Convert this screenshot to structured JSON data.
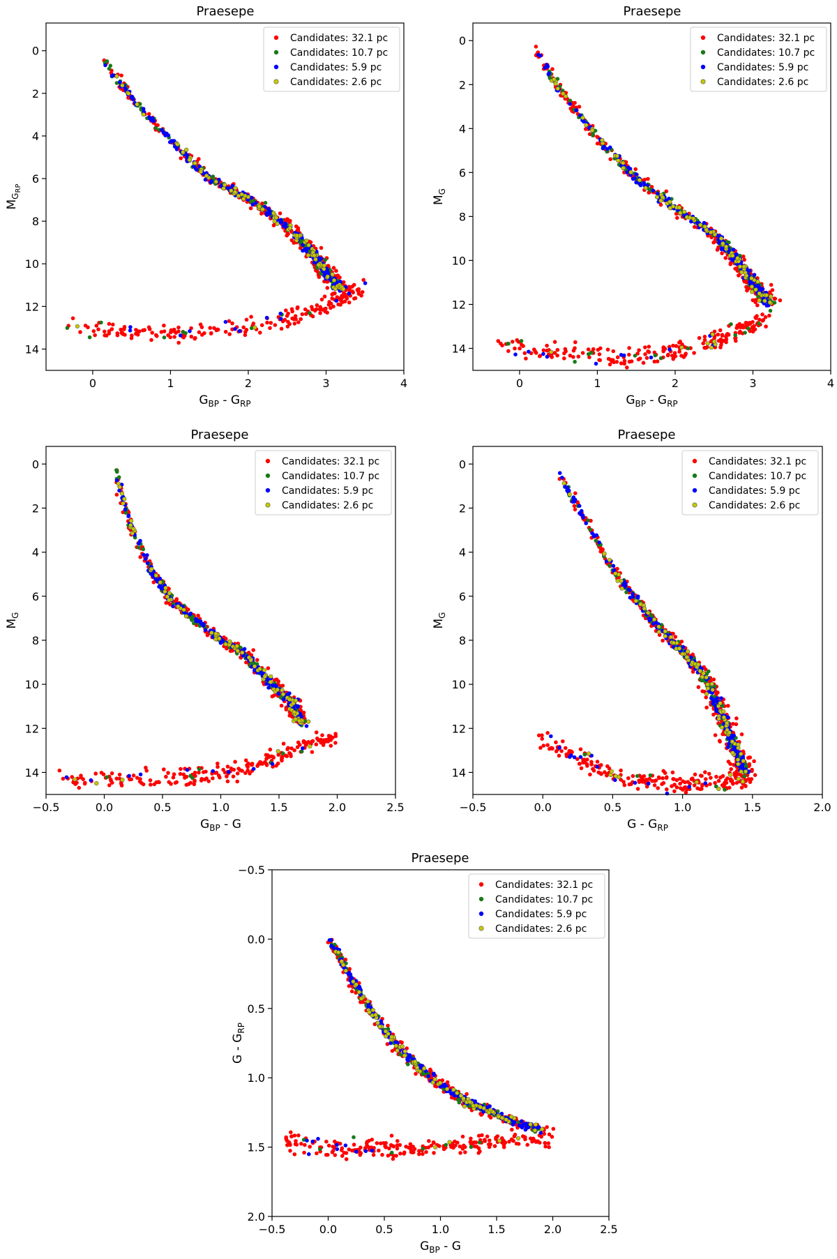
{
  "figure": {
    "background": "#ffffff"
  },
  "colors": {
    "red": "#ff0000",
    "green": "#1a7a1a",
    "blue": "#0000ff",
    "yellow": "#c8c800",
    "dot_edge": "#555555"
  },
  "chart_data": [
    {
      "id": "p1",
      "type": "scatter",
      "title": "Praesepe",
      "xlabel": {
        "main": "G",
        "sub1": "BP",
        "mid": " - G",
        "sub2": "RP"
      },
      "ylabel": {
        "main": "M",
        "sub": "G",
        "sub2": "RP"
      },
      "xlim": [
        -0.6,
        4.0
      ],
      "ylim": [
        15.0,
        -1.3
      ],
      "xticks": [
        "0",
        "1",
        "2",
        "3",
        "4"
      ],
      "xtick_values": [
        0,
        1,
        2,
        3,
        4
      ],
      "yticks": [
        "0",
        "2",
        "4",
        "6",
        "8",
        "10",
        "12",
        "14"
      ],
      "ytick_values": [
        0,
        2,
        4,
        6,
        8,
        10,
        12,
        14
      ],
      "legend_position": "top-right",
      "series_anchors": {
        "main_sequence": [
          [
            0.1,
            0.3
          ],
          [
            0.5,
            2.2
          ],
          [
            1.0,
            4.2
          ],
          [
            1.5,
            6.0
          ],
          [
            2.0,
            6.9
          ],
          [
            2.5,
            8.2
          ],
          [
            2.8,
            9.4
          ],
          [
            3.0,
            10.4
          ],
          [
            3.2,
            11.2
          ]
        ],
        "white_dwarf": [
          [
            -0.3,
            13.0
          ],
          [
            0.5,
            13.2
          ],
          [
            1.2,
            13.3
          ],
          [
            1.8,
            13.0
          ],
          [
            2.4,
            12.6
          ],
          [
            2.8,
            12.2
          ],
          [
            3.2,
            11.6
          ],
          [
            3.5,
            11.2
          ]
        ]
      }
    },
    {
      "id": "p2",
      "type": "scatter",
      "title": "Praesepe",
      "xlabel": {
        "main": "G",
        "sub1": "BP",
        "mid": " - G",
        "sub2": "RP"
      },
      "ylabel": {
        "main": "M",
        "sub": "G"
      },
      "xlim": [
        -0.6,
        4.0
      ],
      "ylim": [
        15.0,
        -0.8
      ],
      "xticks": [
        "0",
        "1",
        "2",
        "3",
        "4"
      ],
      "xtick_values": [
        0,
        1,
        2,
        3,
        4
      ],
      "yticks": [
        "0",
        "2",
        "4",
        "6",
        "8",
        "10",
        "12",
        "14"
      ],
      "ytick_values": [
        0,
        2,
        4,
        6,
        8,
        10,
        12,
        14
      ],
      "legend_position": "top-right",
      "series_anchors": {
        "main_sequence": [
          [
            0.2,
            0.3
          ],
          [
            0.5,
            2.2
          ],
          [
            1.0,
            4.4
          ],
          [
            1.5,
            6.3
          ],
          [
            2.0,
            7.6
          ],
          [
            2.5,
            8.8
          ],
          [
            2.8,
            10.0
          ],
          [
            3.0,
            11.0
          ],
          [
            3.2,
            12.0
          ]
        ],
        "white_dwarf": [
          [
            -0.3,
            13.8
          ],
          [
            0.5,
            14.2
          ],
          [
            1.2,
            14.4
          ],
          [
            1.8,
            14.3
          ],
          [
            2.4,
            13.8
          ],
          [
            2.8,
            13.2
          ],
          [
            3.2,
            12.6
          ]
        ]
      }
    },
    {
      "id": "p3",
      "type": "scatter",
      "title": "Praesepe",
      "xlabel": {
        "main": "G",
        "sub1": "BP",
        "mid": " - G",
        "sub2": ""
      },
      "ylabel": {
        "main": "M",
        "sub": "G"
      },
      "xlim": [
        -0.5,
        2.5
      ],
      "ylim": [
        15.0,
        -0.8
      ],
      "xticks": [
        "−0.5",
        "0.0",
        "0.5",
        "1.0",
        "1.5",
        "2.0",
        "2.5"
      ],
      "xtick_values": [
        -0.5,
        0.0,
        0.5,
        1.0,
        1.5,
        2.0,
        2.5
      ],
      "yticks": [
        "0",
        "2",
        "4",
        "6",
        "8",
        "10",
        "12",
        "14"
      ],
      "ytick_values": [
        0,
        2,
        4,
        6,
        8,
        10,
        12,
        14
      ],
      "legend_position": "top-right",
      "series_anchors": {
        "main_sequence": [
          [
            0.1,
            0.3
          ],
          [
            0.2,
            2.5
          ],
          [
            0.4,
            4.8
          ],
          [
            0.6,
            6.3
          ],
          [
            0.9,
            7.6
          ],
          [
            1.2,
            8.6
          ],
          [
            1.4,
            9.8
          ],
          [
            1.6,
            10.8
          ],
          [
            1.7,
            11.8
          ]
        ],
        "white_dwarf": [
          [
            -0.4,
            14.3
          ],
          [
            0.2,
            14.3
          ],
          [
            0.7,
            14.2
          ],
          [
            1.1,
            14.0
          ],
          [
            1.4,
            13.5
          ],
          [
            1.7,
            12.9
          ],
          [
            2.0,
            12.4
          ]
        ]
      }
    },
    {
      "id": "p4",
      "type": "scatter",
      "title": "Praesepe",
      "xlabel": {
        "main": "G - G",
        "sub1": "",
        "mid": "",
        "sub2": "RP"
      },
      "ylabel": {
        "main": "M",
        "sub": "G"
      },
      "xlim": [
        -0.5,
        2.0
      ],
      "ylim": [
        15.0,
        -0.8
      ],
      "xticks": [
        "−0.5",
        "0.0",
        "0.5",
        "1.0",
        "1.5",
        "2.0"
      ],
      "xtick_values": [
        -0.5,
        0.0,
        0.5,
        1.0,
        1.5,
        2.0
      ],
      "yticks": [
        "0",
        "2",
        "4",
        "6",
        "8",
        "10",
        "12",
        "14"
      ],
      "ytick_values": [
        0,
        2,
        4,
        6,
        8,
        10,
        12,
        14
      ],
      "legend_position": "top-right",
      "series_anchors": {
        "main_sequence": [
          [
            0.1,
            0.3
          ],
          [
            0.3,
            2.5
          ],
          [
            0.5,
            4.8
          ],
          [
            0.75,
            6.8
          ],
          [
            0.95,
            8.2
          ],
          [
            1.15,
            9.5
          ],
          [
            1.25,
            11.0
          ],
          [
            1.35,
            12.5
          ],
          [
            1.45,
            14.0
          ]
        ],
        "white_dwarf": [
          [
            0.0,
            12.5
          ],
          [
            0.3,
            13.5
          ],
          [
            0.6,
            14.3
          ],
          [
            1.0,
            14.5
          ],
          [
            1.3,
            14.4
          ],
          [
            1.5,
            14.2
          ]
        ]
      }
    },
    {
      "id": "p5",
      "type": "scatter",
      "title": "Praesepe",
      "xlabel": {
        "main": "G",
        "sub1": "BP",
        "mid": " - G",
        "sub2": ""
      },
      "ylabel": {
        "main": "G - G",
        "sub": "RP"
      },
      "xlim": [
        -0.5,
        2.5
      ],
      "ylim": [
        2.0,
        -0.5
      ],
      "xticks": [
        "−0.5",
        "0.0",
        "0.5",
        "1.0",
        "1.5",
        "2.0",
        "2.5"
      ],
      "xtick_values": [
        -0.5,
        0.0,
        0.5,
        1.0,
        1.5,
        2.0,
        2.5
      ],
      "yticks": [
        "−0.5",
        "0.0",
        "0.5",
        "1.0",
        "1.5",
        "2.0"
      ],
      "ytick_values": [
        -0.5,
        0.0,
        0.5,
        1.0,
        1.5,
        2.0
      ],
      "legend_position": "top-right",
      "series_anchors": {
        "main_sequence": [
          [
            0.0,
            0.0
          ],
          [
            0.1,
            0.12
          ],
          [
            0.25,
            0.35
          ],
          [
            0.45,
            0.6
          ],
          [
            0.7,
            0.85
          ],
          [
            1.0,
            1.05
          ],
          [
            1.3,
            1.2
          ],
          [
            1.6,
            1.3
          ],
          [
            1.9,
            1.38
          ]
        ],
        "white_dwarf": [
          [
            -0.4,
            1.45
          ],
          [
            0.0,
            1.5
          ],
          [
            0.4,
            1.5
          ],
          [
            0.8,
            1.52
          ],
          [
            1.2,
            1.5
          ],
          [
            1.6,
            1.45
          ],
          [
            2.0,
            1.42
          ]
        ]
      }
    }
  ],
  "legend": {
    "entries": [
      {
        "label": "Candidates: 32.1 pc",
        "color": "#ff0000"
      },
      {
        "label": "Candidates: 10.7 pc",
        "color": "#1a7a1a"
      },
      {
        "label": "Candidates: 5.9 pc",
        "color": "#0000ff"
      },
      {
        "label": "Candidates: 2.6 pc",
        "color": "#c8c800"
      }
    ]
  }
}
